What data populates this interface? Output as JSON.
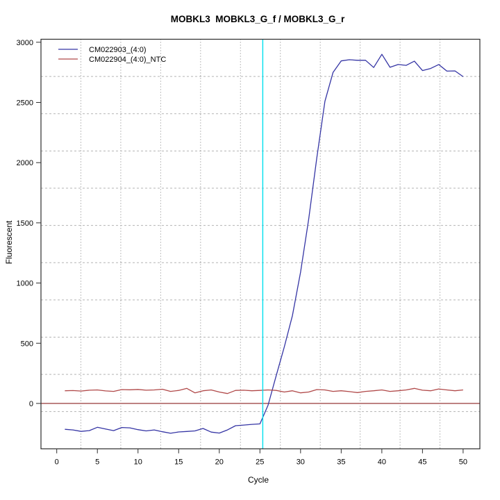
{
  "title": "MOBKL3  MOBKL3_G_f / MOBKL3_G_r",
  "axes": {
    "xlabel": "Cycle",
    "ylabel": "Fluorescent"
  },
  "colors": {
    "sample_line": "#3434a4",
    "ntc_line": "#b04848",
    "threshold_line": "#8b2020",
    "ct_line": "#00dfee",
    "axis_box": "#2b2b2b",
    "vgrid": "#7d7d7d",
    "hgrid": "#b3b3b3"
  },
  "chart_data": {
    "type": "line",
    "title": "MOBKL3  MOBKL3_G_f / MOBKL3_G_r",
    "xlabel": "Cycle",
    "ylabel": "Fluorescent",
    "x": [
      1,
      2,
      3,
      4,
      5,
      6,
      7,
      8,
      9,
      10,
      11,
      12,
      13,
      14,
      15,
      16,
      17,
      18,
      19,
      20,
      21,
      22,
      23,
      24,
      25,
      26,
      27,
      28,
      29,
      30,
      31,
      32,
      33,
      34,
      35,
      36,
      37,
      38,
      39,
      40,
      41,
      42,
      43,
      44,
      45,
      46,
      47,
      48,
      49,
      50
    ],
    "series": [
      {
        "name": "CM022903_(4:0)",
        "color": "#3434a4",
        "values": [
          -215,
          -220,
          -232,
          -226,
          -198,
          -212,
          -226,
          -200,
          -203,
          -218,
          -228,
          -220,
          -235,
          -248,
          -237,
          -233,
          -228,
          -208,
          -238,
          -246,
          -220,
          -185,
          -180,
          -174,
          -170,
          -15,
          230,
          470,
          730,
          1090,
          1530,
          2040,
          2510,
          2750,
          2845,
          2855,
          2850,
          2850,
          2790,
          2900,
          2792,
          2815,
          2808,
          2843,
          2765,
          2782,
          2815,
          2760,
          2762,
          2714
        ]
      },
      {
        "name": "CM022904_(4:0)_NTC",
        "color": "#b04848",
        "values": [
          105,
          107,
          103,
          110,
          112,
          104,
          100,
          115,
          113,
          116,
          110,
          112,
          118,
          100,
          108,
          125,
          88,
          105,
          112,
          95,
          82,
          108,
          110,
          105,
          108,
          112,
          108,
          95,
          105,
          88,
          95,
          115,
          112,
          100,
          105,
          98,
          90,
          100,
          105,
          112,
          100,
          105,
          112,
          125,
          110,
          105,
          120,
          112,
          105,
          112
        ]
      }
    ],
    "legend": {
      "position": "top-left",
      "entries": [
        "CM022903_(4:0)",
        "CM022904_(4:0)_NTC"
      ]
    },
    "xlim": [
      -1.94,
      52.06
    ],
    "ylim": [
      -377,
      3025
    ],
    "x_ticks": [
      0,
      5,
      10,
      15,
      20,
      25,
      30,
      35,
      40,
      45,
      50
    ],
    "y_ticks": [
      0,
      500,
      1000,
      1500,
      2000,
      2500,
      3000
    ],
    "grid": {
      "divisions": 11,
      "vstyle": "dotted",
      "hstyle": "dashed"
    },
    "annotations": {
      "ct_line": {
        "axis": "x",
        "value": 25.35,
        "color": "#00dfee"
      },
      "threshold_line": {
        "axis": "y",
        "value": 0,
        "color": "#8b2020"
      }
    }
  }
}
